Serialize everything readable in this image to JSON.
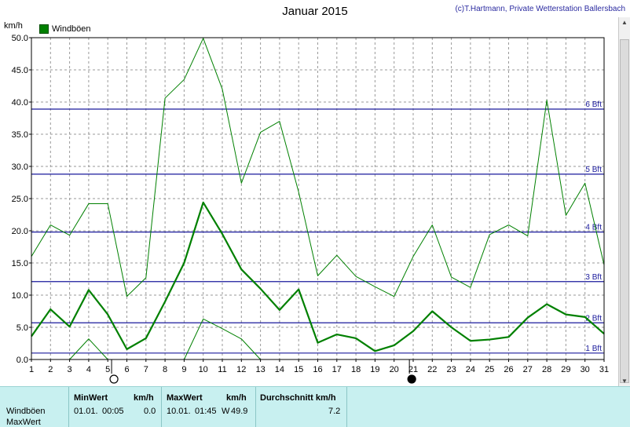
{
  "header": {
    "title": "Januar 2015",
    "copyright": "(c)T.Hartmann, Private Wetterstation Ballersbach",
    "unit": "km/h"
  },
  "legend": {
    "label": "Windböen",
    "color": "#008000"
  },
  "chart_data": {
    "type": "line",
    "title": "Januar 2015",
    "ylabel": "km/h",
    "xlim": [
      1,
      31
    ],
    "ylim": [
      0,
      50
    ],
    "grid": true,
    "legend_position": "top-left",
    "x": [
      1,
      2,
      3,
      4,
      5,
      6,
      7,
      8,
      9,
      10,
      11,
      12,
      13,
      14,
      15,
      16,
      17,
      18,
      19,
      20,
      21,
      22,
      23,
      24,
      25,
      26,
      27,
      28,
      29,
      30,
      31
    ],
    "y_ticks": [
      "0.0",
      "5.0",
      "10.0",
      "15.0",
      "20.0",
      "25.0",
      "30.0",
      "35.0",
      "40.0",
      "45.0",
      "50.0"
    ],
    "x_ticks": [
      "1",
      "2",
      "3",
      "4",
      "5",
      "6",
      "7",
      "8",
      "9",
      "10",
      "11",
      "12",
      "13",
      "14",
      "15",
      "16",
      "17",
      "18",
      "19",
      "20",
      "21",
      "22",
      "23",
      "24",
      "25",
      "26",
      "27",
      "28",
      "29",
      "30",
      "31"
    ],
    "series": [
      {
        "name": "Windböen",
        "role": "mean",
        "color": "#008000",
        "values": [
          3.6,
          7.8,
          5.1,
          10.8,
          7.0,
          1.6,
          3.3,
          9.0,
          15.0,
          24.4,
          19.5,
          14.0,
          11.0,
          7.7,
          10.9,
          2.6,
          3.9,
          3.3,
          1.3,
          2.2,
          4.4,
          7.5,
          5.0,
          2.9,
          3.1,
          3.5,
          6.5,
          8.6,
          7.0,
          6.6,
          4.0
        ]
      },
      {
        "role": "max",
        "color": "#008000",
        "values": [
          16.0,
          20.9,
          19.3,
          24.2,
          24.2,
          9.8,
          12.7,
          40.6,
          43.5,
          49.9,
          42.0,
          27.4,
          35.3,
          37.0,
          26.0,
          13.0,
          16.2,
          12.9,
          11.3,
          9.8,
          16.0,
          20.9,
          12.8,
          11.2,
          19.4,
          20.9,
          19.2,
          40.3,
          22.4,
          27.4,
          14.7
        ]
      },
      {
        "role": "min",
        "color": "#008000",
        "values": [
          null,
          null,
          0.0,
          3.2,
          0.0,
          null,
          null,
          null,
          0.0,
          6.3,
          4.8,
          3.2,
          0.0,
          null,
          null,
          null,
          null,
          null,
          null,
          null,
          null,
          null,
          null,
          null,
          null,
          null,
          null,
          null,
          null,
          null,
          null
        ]
      }
    ],
    "reference_lines": [
      {
        "label": "1 Bft",
        "value": 1.0
      },
      {
        "label": "2 Bft",
        "value": 5.7
      },
      {
        "label": "3 Bft",
        "value": 12.1
      },
      {
        "label": "4 Bft",
        "value": 19.8
      },
      {
        "label": "5 Bft",
        "value": 28.8
      },
      {
        "label": "6 Bft",
        "value": 38.9
      }
    ],
    "moon_phases": [
      {
        "day": 5.2,
        "phase": "full"
      },
      {
        "day": 20.8,
        "phase": "new"
      }
    ]
  },
  "footer": {
    "row_label_1": "Windböen",
    "row_label_2": "MaxWert",
    "min_header": "MinWert",
    "min_unit": "km/h",
    "min_date": "01.01.",
    "min_time": "00:05",
    "min_value": "0.0",
    "max_header": "MaxWert",
    "max_unit": "km/h",
    "max_date": "10.01.",
    "max_time": "01:45",
    "max_dir": "W",
    "max_value": "49.9",
    "avg_header": "Durchschnitt km/h",
    "avg_value": "7.2"
  }
}
